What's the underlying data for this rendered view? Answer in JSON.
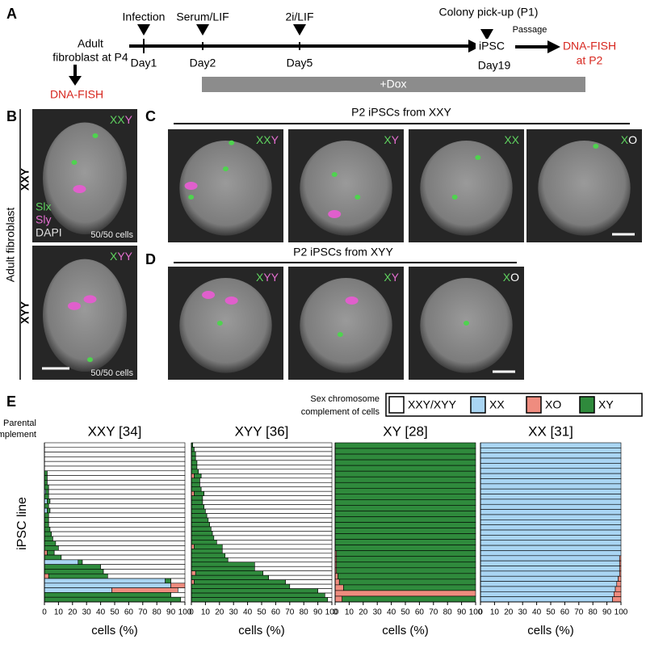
{
  "panel_labels": [
    "A",
    "B",
    "C",
    "D",
    "E"
  ],
  "timeline": {
    "origin": [
      "Adult",
      "fibroblast at P4"
    ],
    "origin_fish": "DNA-FISH",
    "events": [
      {
        "label": "Infection",
        "day": "Day1"
      },
      {
        "label": "Serum/LIF",
        "day": "Day2"
      },
      {
        "label": "2i/LIF",
        "day": "Day5"
      },
      {
        "label": "Colony pick-up (P1)",
        "day": "Day19"
      }
    ],
    "stage": "iPSC",
    "passage": "Passage",
    "end": [
      "DNA-FISH",
      "at P2"
    ],
    "treatment": "+Dox"
  },
  "panel_b": {
    "side_label": "Adult fibroblast",
    "images": [
      {
        "row_label": "XXY",
        "genotype": [
          {
            "text": "XX",
            "color": "#5fd35f"
          },
          {
            "text": "Y",
            "color": "#e46fd0"
          }
        ],
        "count": "50/50 cells",
        "probes": [
          {
            "text": "Slx",
            "color": "#5fd35f"
          },
          {
            "text": "Sly",
            "color": "#e46fd0"
          },
          {
            "text": "DAPI",
            "color": "#e0e0e0"
          }
        ]
      },
      {
        "row_label": "XYY",
        "genotype": [
          {
            "text": "X",
            "color": "#5fd35f"
          },
          {
            "text": "YY",
            "color": "#e46fd0"
          }
        ],
        "count": "50/50 cells"
      }
    ]
  },
  "panel_c": {
    "title": "P2 iPSCs from XXY",
    "images": [
      {
        "genotype": [
          {
            "text": "XX",
            "color": "#5fd35f"
          },
          {
            "text": "Y",
            "color": "#e46fd0"
          }
        ]
      },
      {
        "genotype": [
          {
            "text": "X",
            "color": "#5fd35f"
          },
          {
            "text": "Y",
            "color": "#e46fd0"
          }
        ]
      },
      {
        "genotype": [
          {
            "text": "XX",
            "color": "#5fd35f"
          }
        ]
      },
      {
        "genotype": [
          {
            "text": "X",
            "color": "#5fd35f"
          },
          {
            "text": "O",
            "color": "#ffffff"
          }
        ]
      }
    ]
  },
  "panel_d": {
    "title": "P2 iPSCs from XYY",
    "images": [
      {
        "genotype": [
          {
            "text": "X",
            "color": "#5fd35f"
          },
          {
            "text": "YY",
            "color": "#e46fd0"
          }
        ]
      },
      {
        "genotype": [
          {
            "text": "X",
            "color": "#5fd35f"
          },
          {
            "text": "Y",
            "color": "#e46fd0"
          }
        ]
      },
      {
        "genotype": [
          {
            "text": "X",
            "color": "#5fd35f"
          },
          {
            "text": "O",
            "color": "#ffffff"
          }
        ]
      }
    ]
  },
  "panel_e": {
    "legend_title": [
      "Sex chromosome",
      "complement of cells"
    ],
    "parental_label": [
      "Parental",
      "complement"
    ],
    "y_label": "iPSC line"
  },
  "chart_data": [
    {
      "type": "bar",
      "orientation": "horizontal",
      "stacked": true,
      "title": "XXY [34]",
      "x_label": "cells (%)",
      "xlim": [
        0,
        100
      ],
      "xticks": [
        0,
        10,
        20,
        30,
        40,
        50,
        60,
        70,
        80,
        90,
        100
      ],
      "series": [
        {
          "name": "XXY/XYY",
          "color": "#ffffff",
          "values": [
            100,
            100,
            100,
            100,
            100,
            100,
            98,
            98,
            98,
            97,
            97,
            97,
            96,
            97,
            96,
            97,
            97,
            97,
            96,
            95,
            94,
            92,
            90,
            93,
            88,
            73,
            60,
            58,
            55,
            10,
            0,
            5,
            10,
            3
          ]
        },
        {
          "name": "XX",
          "color": "#a9d5f3",
          "values": [
            0,
            0,
            0,
            0,
            0,
            0,
            0,
            0,
            0,
            0,
            1,
            0,
            2,
            0,
            2,
            0,
            0,
            0,
            0,
            0,
            0,
            0,
            0,
            0,
            0,
            24,
            0,
            0,
            0,
            86,
            90,
            48,
            0,
            0
          ]
        },
        {
          "name": "XO",
          "color": "#ef8c7f",
          "values": [
            0,
            0,
            0,
            0,
            0,
            0,
            0,
            0,
            0,
            0,
            0,
            0,
            0,
            0,
            0,
            0,
            0,
            0,
            0,
            0,
            0,
            0,
            0,
            2,
            0,
            0,
            0,
            0,
            3,
            0,
            10,
            47,
            0,
            0
          ]
        },
        {
          "name": "XY",
          "color": "#2f8a3c",
          "values": [
            0,
            0,
            0,
            0,
            0,
            0,
            2,
            2,
            2,
            3,
            2,
            3,
            2,
            3,
            2,
            3,
            3,
            3,
            4,
            5,
            6,
            8,
            10,
            5,
            12,
            3,
            40,
            42,
            42,
            4,
            0,
            0,
            90,
            97
          ]
        }
      ]
    },
    {
      "type": "bar",
      "orientation": "horizontal",
      "stacked": true,
      "title": "XYY [36]",
      "x_label": "cells (%)",
      "xlim": [
        0,
        100
      ],
      "xticks": [
        0,
        10,
        20,
        30,
        40,
        50,
        60,
        70,
        80,
        90,
        100
      ],
      "series": [
        {
          "name": "XXY/XYY",
          "color": "#ffffff",
          "values": [
            99,
            98,
            97,
            97,
            96,
            96,
            95,
            93,
            94,
            94,
            93,
            91,
            92,
            92,
            91,
            90,
            89,
            88,
            87,
            86,
            85,
            84,
            82,
            78,
            78,
            76,
            74,
            55,
            55,
            49,
            45,
            33,
            30,
            10,
            5,
            3
          ]
        },
        {
          "name": "XX",
          "color": "#a9d5f3",
          "values": [
            0,
            0,
            0,
            0,
            0,
            0,
            0,
            0,
            0,
            0,
            0,
            0,
            0,
            0,
            0,
            0,
            0,
            0,
            0,
            0,
            0,
            0,
            0,
            0,
            0,
            0,
            0,
            0,
            0,
            0,
            0,
            0,
            0,
            0,
            0,
            0
          ]
        },
        {
          "name": "XO",
          "color": "#ef8c7f",
          "values": [
            0,
            0,
            0,
            0,
            0,
            0,
            0,
            2,
            0,
            0,
            0,
            2,
            0,
            0,
            0,
            0,
            0,
            0,
            0,
            0,
            0,
            0,
            0,
            2,
            0,
            0,
            0,
            0,
            0,
            3,
            0,
            2,
            0,
            0,
            0,
            0
          ]
        },
        {
          "name": "XY",
          "color": "#2f8a3c",
          "values": [
            1,
            2,
            3,
            3,
            4,
            4,
            5,
            5,
            6,
            6,
            7,
            7,
            8,
            8,
            9,
            10,
            11,
            12,
            13,
            14,
            15,
            16,
            18,
            20,
            22,
            24,
            26,
            45,
            45,
            48,
            55,
            65,
            70,
            90,
            95,
            97
          ]
        }
      ]
    },
    {
      "type": "bar",
      "orientation": "horizontal",
      "stacked": true,
      "title": "XY [28]",
      "x_label": "cells (%)",
      "xlim": [
        0,
        100
      ],
      "xticks": [
        0,
        10,
        20,
        30,
        40,
        50,
        60,
        70,
        80,
        90,
        100
      ],
      "series": [
        {
          "name": "XXY/XYY",
          "color": "#ffffff",
          "values": [
            0,
            0,
            0,
            0,
            0,
            0,
            0,
            0,
            0,
            0,
            0,
            0,
            0,
            0,
            0,
            0,
            0,
            0,
            0,
            0,
            0,
            0,
            0,
            0,
            0,
            0,
            0,
            0
          ]
        },
        {
          "name": "XX",
          "color": "#a9d5f3",
          "values": [
            0,
            0,
            0,
            0,
            0,
            0,
            0,
            0,
            0,
            0,
            0,
            0,
            0,
            0,
            0,
            0,
            0,
            0,
            0,
            0,
            0,
            0,
            0,
            0,
            0,
            0,
            0,
            0
          ]
        },
        {
          "name": "XO",
          "color": "#ef8c7f",
          "values": [
            0,
            0,
            0,
            0,
            0,
            0,
            0,
            0,
            0,
            0,
            0,
            0,
            0,
            0,
            0,
            0,
            0,
            0,
            0,
            1,
            1,
            1,
            1,
            2,
            3,
            6,
            100,
            5
          ]
        },
        {
          "name": "XY",
          "color": "#2f8a3c",
          "values": [
            100,
            100,
            100,
            100,
            100,
            100,
            100,
            100,
            100,
            100,
            100,
            100,
            100,
            100,
            100,
            100,
            100,
            100,
            100,
            99,
            99,
            99,
            99,
            98,
            97,
            94,
            0,
            95
          ]
        }
      ]
    },
    {
      "type": "bar",
      "orientation": "horizontal",
      "stacked": true,
      "title": "XX [31]",
      "x_label": "cells (%)",
      "xlim": [
        0,
        100
      ],
      "xticks": [
        0,
        10,
        20,
        30,
        40,
        50,
        60,
        70,
        80,
        90,
        100
      ],
      "series": [
        {
          "name": "XXY/XYY",
          "color": "#ffffff",
          "values": [
            0,
            0,
            0,
            0,
            0,
            0,
            0,
            0,
            0,
            0,
            0,
            0,
            0,
            0,
            0,
            0,
            0,
            0,
            0,
            0,
            0,
            0,
            0,
            0,
            0,
            0,
            0,
            0,
            0,
            0,
            0
          ]
        },
        {
          "name": "XX",
          "color": "#a9d5f3",
          "values": [
            100,
            100,
            100,
            100,
            100,
            100,
            100,
            100,
            100,
            100,
            100,
            100,
            100,
            100,
            100,
            100,
            100,
            100,
            100,
            100,
            100,
            100,
            99,
            99,
            99,
            99,
            98,
            97,
            96,
            95,
            94
          ]
        },
        {
          "name": "XO",
          "color": "#ef8c7f",
          "values": [
            0,
            0,
            0,
            0,
            0,
            0,
            0,
            0,
            0,
            0,
            0,
            0,
            0,
            0,
            0,
            0,
            0,
            0,
            0,
            0,
            0,
            0,
            1,
            1,
            1,
            1,
            2,
            3,
            4,
            5,
            6
          ]
        },
        {
          "name": "XY",
          "color": "#2f8a3c",
          "values": [
            0,
            0,
            0,
            0,
            0,
            0,
            0,
            0,
            0,
            0,
            0,
            0,
            0,
            0,
            0,
            0,
            0,
            0,
            0,
            0,
            0,
            0,
            0,
            0,
            0,
            0,
            0,
            0,
            0,
            0,
            0
          ]
        }
      ]
    }
  ]
}
